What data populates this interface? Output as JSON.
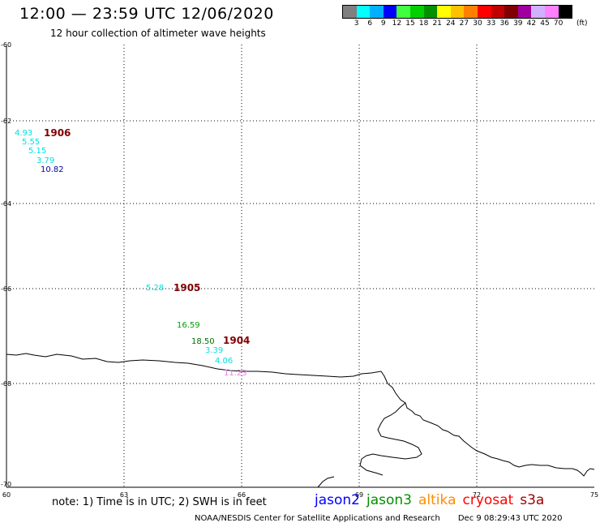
{
  "header": {
    "title": "12:00 — 23:59 UTC 12/06/2020",
    "subtitle": "12 hour collection of altimeter wave heights"
  },
  "legend": {
    "colors": [
      "#808080",
      "#00ffff",
      "#00b0ff",
      "#0000ff",
      "#40ff40",
      "#00d000",
      "#009000",
      "#ffff00",
      "#ffc000",
      "#ff8000",
      "#ff0000",
      "#c00000",
      "#800000",
      "#a000a0",
      "#d0b0ff",
      "#ff80ff",
      "#000000"
    ],
    "labels": [
      "3",
      "6",
      "9",
      "12",
      "15",
      "18",
      "21",
      "24",
      "27",
      "30",
      "33",
      "36",
      "39",
      "42",
      "45",
      "70"
    ],
    "unit": "(ft)"
  },
  "axes": {
    "y_labels": [
      "-60",
      "-62",
      "-64",
      "-66",
      "-68",
      "-70"
    ],
    "x_labels": [
      "60",
      "63",
      "66",
      "69",
      "72",
      "75"
    ]
  },
  "storms": [
    {
      "id": "1906",
      "label": "1906"
    },
    {
      "id": "1905",
      "label": "1905"
    },
    {
      "id": "1904",
      "label": "1904"
    }
  ],
  "observations": [
    {
      "value": "4.93",
      "color": "#00e0e0"
    },
    {
      "value": "5.55",
      "color": "#00e0e0"
    },
    {
      "value": "5.15",
      "color": "#00e0e0"
    },
    {
      "value": "3.79",
      "color": "#00e0e0"
    },
    {
      "value": "10.82",
      "color": "#0000a0"
    },
    {
      "value": "5.28",
      "color": "#00e0e0"
    },
    {
      "value": "16.59",
      "color": "#00a000"
    },
    {
      "value": "18.50",
      "color": "#007000"
    },
    {
      "value": "3.39",
      "color": "#00e0e0"
    },
    {
      "value": "4.06",
      "color": "#00e0e0"
    },
    {
      "value": "11.23",
      "color": "#e080e0"
    }
  ],
  "footer": {
    "note": "note: 1) Time is in UTC; 2) SWH is in feet",
    "satellites": [
      {
        "name": "jason2",
        "color": "#0000ff"
      },
      {
        "name": "jason3",
        "color": "#009000"
      },
      {
        "name": "altika",
        "color": "#ff8c00"
      },
      {
        "name": "cryosat",
        "color": "#ff0000"
      },
      {
        "name": "s3a",
        "color": "#a00000"
      }
    ],
    "credit": "NOAA/NESDIS Center for Satellite Applications and Research",
    "timestamp": "Dec  9 08:29:43 UTC 2020"
  }
}
